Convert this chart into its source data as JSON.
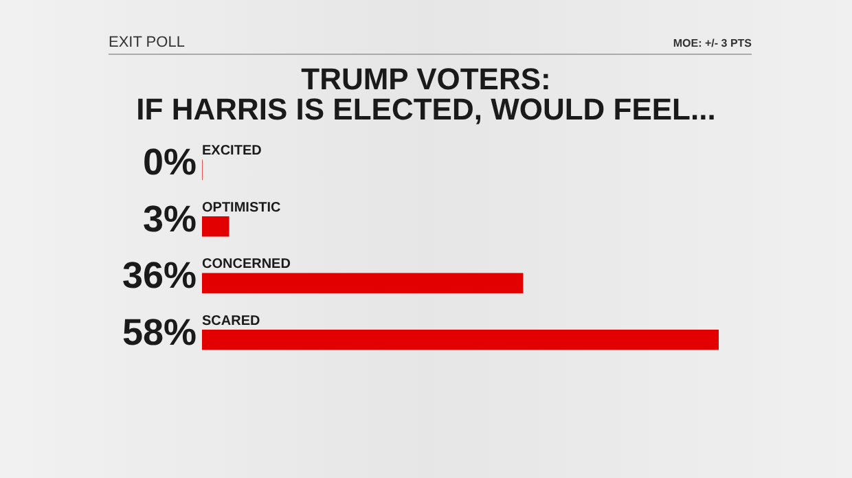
{
  "chart_data": {
    "type": "bar",
    "orientation": "horizontal",
    "title": "TRUMP VOTERS:\nIF HARRIS IS ELECTED, WOULD FEEL...",
    "annotations": [
      "EXIT POLL",
      "MOE: +/- 3 PTS"
    ],
    "categories": [
      "EXCITED",
      "OPTIMISTIC",
      "CONCERNED",
      "SCARED"
    ],
    "values": [
      0,
      3,
      36,
      58
    ],
    "value_labels": [
      "0%",
      "3%",
      "36%",
      "58%"
    ],
    "color": "#e30000"
  }
}
